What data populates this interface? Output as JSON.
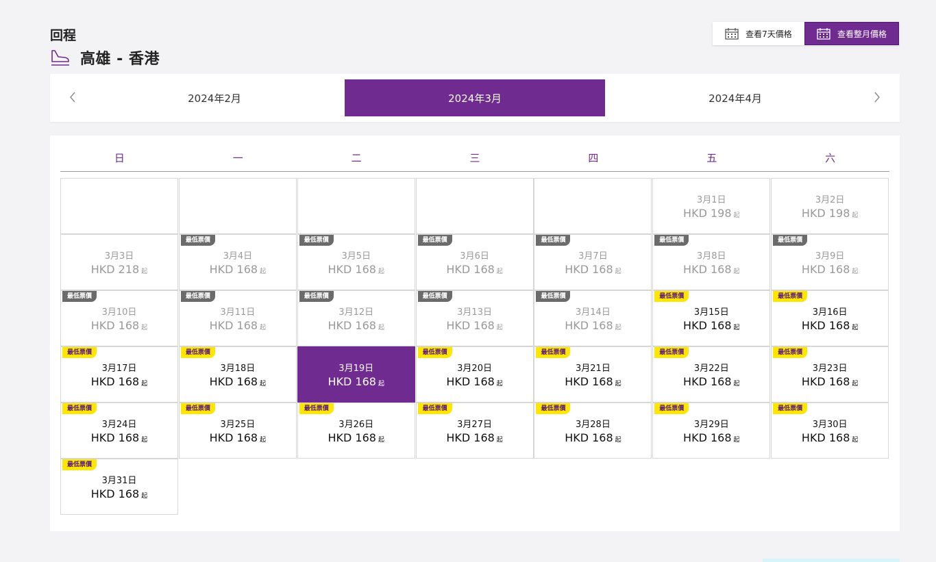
{
  "header": {
    "label": "回程",
    "route": "高雄 - 香港"
  },
  "view_toggle": {
    "week_label": "查看7天價格",
    "month_label": "查看整月價格"
  },
  "months": {
    "prev": "2024年2月",
    "current": "2024年3月",
    "next": "2024年4月"
  },
  "weekdays": [
    "日",
    "一",
    "二",
    "三",
    "四",
    "五",
    "六"
  ],
  "currency_suffix": "起",
  "colors": {
    "accent": "#6f2b90",
    "tag_yellow": "#ffe600",
    "tag_grey": "#6b6b6b"
  },
  "days": [
    {
      "date": "3月1日",
      "price": "HKD 198",
      "tag": "",
      "state": "past"
    },
    {
      "date": "3月2日",
      "price": "HKD 198",
      "tag": "",
      "state": "past"
    },
    {
      "date": "3月3日",
      "price": "HKD 218",
      "tag": "",
      "state": "past"
    },
    {
      "date": "3月4日",
      "price": "HKD 168",
      "tag": "最低票價",
      "state": "past"
    },
    {
      "date": "3月5日",
      "price": "HKD 168",
      "tag": "最低票價",
      "state": "past"
    },
    {
      "date": "3月6日",
      "price": "HKD 168",
      "tag": "最低票價",
      "state": "past"
    },
    {
      "date": "3月7日",
      "price": "HKD 168",
      "tag": "最低票價",
      "state": "past"
    },
    {
      "date": "3月8日",
      "price": "HKD 168",
      "tag": "最低票價",
      "state": "past"
    },
    {
      "date": "3月9日",
      "price": "HKD 168",
      "tag": "最低票價",
      "state": "past"
    },
    {
      "date": "3月10日",
      "price": "HKD 168",
      "tag": "最低票價",
      "state": "past"
    },
    {
      "date": "3月11日",
      "price": "HKD 168",
      "tag": "最低票價",
      "state": "past"
    },
    {
      "date": "3月12日",
      "price": "HKD 168",
      "tag": "最低票價",
      "state": "past"
    },
    {
      "date": "3月13日",
      "price": "HKD 168",
      "tag": "最低票價",
      "state": "past"
    },
    {
      "date": "3月14日",
      "price": "HKD 168",
      "tag": "最低票價",
      "state": "past"
    },
    {
      "date": "3月15日",
      "price": "HKD 168",
      "tag": "最低票價",
      "state": "avail"
    },
    {
      "date": "3月16日",
      "price": "HKD 168",
      "tag": "最低票價",
      "state": "avail"
    },
    {
      "date": "3月17日",
      "price": "HKD 168",
      "tag": "最低票價",
      "state": "avail"
    },
    {
      "date": "3月18日",
      "price": "HKD 168",
      "tag": "最低票價",
      "state": "avail"
    },
    {
      "date": "3月19日",
      "price": "HKD 168",
      "tag": "",
      "state": "selected"
    },
    {
      "date": "3月20日",
      "price": "HKD 168",
      "tag": "最低票價",
      "state": "avail"
    },
    {
      "date": "3月21日",
      "price": "HKD 168",
      "tag": "最低票價",
      "state": "avail"
    },
    {
      "date": "3月22日",
      "price": "HKD 168",
      "tag": "最低票價",
      "state": "avail"
    },
    {
      "date": "3月23日",
      "price": "HKD 168",
      "tag": "最低票價",
      "state": "avail"
    },
    {
      "date": "3月24日",
      "price": "HKD 168",
      "tag": "最低票價",
      "state": "avail"
    },
    {
      "date": "3月25日",
      "price": "HKD 168",
      "tag": "最低票價",
      "state": "avail"
    },
    {
      "date": "3月26日",
      "price": "HKD 168",
      "tag": "最低票價",
      "state": "avail"
    },
    {
      "date": "3月27日",
      "price": "HKD 168",
      "tag": "最低票價",
      "state": "avail"
    },
    {
      "date": "3月28日",
      "price": "HKD 168",
      "tag": "最低票價",
      "state": "avail"
    },
    {
      "date": "3月29日",
      "price": "HKD 168",
      "tag": "最低票價",
      "state": "avail"
    },
    {
      "date": "3月30日",
      "price": "HKD 168",
      "tag": "最低票價",
      "state": "avail"
    },
    {
      "date": "3月31日",
      "price": "HKD 168",
      "tag": "最低票價",
      "state": "avail"
    }
  ]
}
